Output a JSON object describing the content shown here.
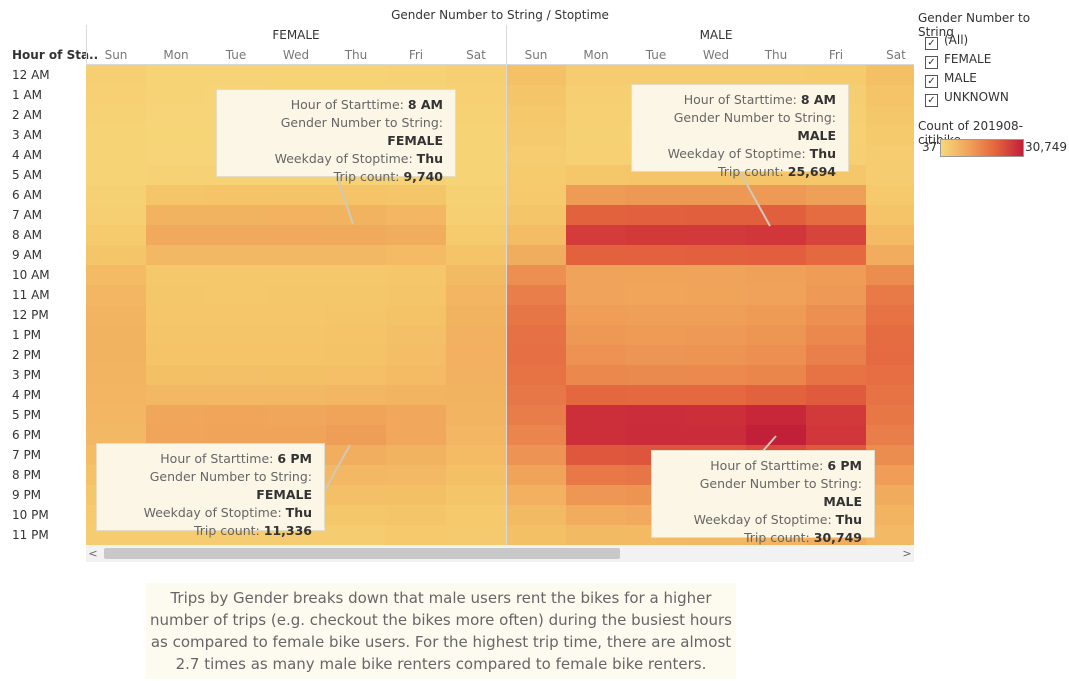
{
  "header": {
    "title": "Gender Number to String / Stoptime",
    "row_title": "Hour of Sta.."
  },
  "groups": [
    "FEMALE",
    "MALE"
  ],
  "days": [
    "Sun",
    "Mon",
    "Tue",
    "Wed",
    "Thu",
    "Fri",
    "Sat"
  ],
  "hours": [
    "12 AM",
    "1 AM",
    "2 AM",
    "3 AM",
    "4 AM",
    "5 AM",
    "6 AM",
    "7 AM",
    "8 AM",
    "9 AM",
    "10 AM",
    "11 AM",
    "12 PM",
    "1 PM",
    "2 PM",
    "3 PM",
    "4 PM",
    "5 PM",
    "6 PM",
    "7 PM",
    "8 PM",
    "9 PM",
    "10 PM",
    "11 PM"
  ],
  "colors": {
    "low": "#f6d87a",
    "mid1": "#f0a35a",
    "mid2": "#e4643e",
    "high": "#c21f39"
  },
  "chart_data": {
    "type": "heatmap",
    "title": "Gender Number to String / Stoptime",
    "x_groups": [
      "FEMALE",
      "MALE"
    ],
    "x": [
      "Sun",
      "Mon",
      "Tue",
      "Wed",
      "Thu",
      "Fri",
      "Sat"
    ],
    "y": [
      "12 AM",
      "1 AM",
      "2 AM",
      "3 AM",
      "4 AM",
      "5 AM",
      "6 AM",
      "7 AM",
      "8 AM",
      "9 AM",
      "10 AM",
      "11 AM",
      "12 PM",
      "1 PM",
      "2 PM",
      "3 PM",
      "4 PM",
      "5 PM",
      "6 PM",
      "7 PM",
      "8 PM",
      "9 PM",
      "10 PM",
      "11 PM"
    ],
    "color_range": [
      37,
      30749
    ],
    "values": {
      "FEMALE": [
        [
          2000,
          1200,
          1100,
          1200,
          1300,
          1400,
          2200
        ],
        [
          1800,
          1000,
          900,
          1000,
          1000,
          1100,
          1800
        ],
        [
          1500,
          900,
          800,
          900,
          900,
          900,
          1500
        ],
        [
          1300,
          800,
          700,
          800,
          800,
          900,
          1300
        ],
        [
          1200,
          900,
          800,
          900,
          900,
          900,
          1200
        ],
        [
          1300,
          1500,
          1500,
          1500,
          1500,
          1500,
          1300
        ],
        [
          1600,
          4500,
          4600,
          4700,
          4600,
          4300,
          1600
        ],
        [
          2000,
          7800,
          7900,
          8000,
          7900,
          7300,
          2100
        ],
        [
          3000,
          9400,
          9500,
          9600,
          9740,
          9000,
          3000
        ],
        [
          4500,
          6800,
          6800,
          6900,
          6800,
          6400,
          4600
        ],
        [
          6300,
          3800,
          3700,
          3800,
          3800,
          4200,
          6500
        ],
        [
          7200,
          3900,
          3800,
          3900,
          4000,
          4500,
          7400
        ],
        [
          7600,
          4200,
          4100,
          4200,
          4300,
          4900,
          7900
        ],
        [
          7800,
          4500,
          4400,
          4400,
          4600,
          5300,
          8200
        ],
        [
          7800,
          4800,
          4700,
          4700,
          4900,
          5700,
          8300
        ],
        [
          7600,
          5400,
          5300,
          5400,
          5500,
          6400,
          8100
        ],
        [
          7400,
          6900,
          6900,
          6900,
          7000,
          7700,
          7900
        ],
        [
          7200,
          10300,
          10400,
          10300,
          10600,
          9800,
          7600
        ],
        [
          6800,
          10500,
          10600,
          10600,
          11336,
          9900,
          7200
        ],
        [
          6000,
          7900,
          8100,
          8200,
          8700,
          7900,
          6300
        ],
        [
          5000,
          6200,
          6300,
          6400,
          6800,
          6600,
          5400
        ],
        [
          3900,
          4800,
          4900,
          5000,
          5300,
          5400,
          4400
        ],
        [
          3000,
          3600,
          3700,
          3800,
          4000,
          4300,
          3600
        ],
        [
          2500,
          2500,
          2600,
          2700,
          2900,
          3500,
          3200
        ]
      ],
      "MALE": [
        [
          5200,
          2800,
          2600,
          2800,
          2900,
          3000,
          5400
        ],
        [
          4500,
          2200,
          2000,
          2100,
          2200,
          2400,
          4700
        ],
        [
          3800,
          1800,
          1600,
          1700,
          1800,
          2000,
          3900
        ],
        [
          3200,
          1600,
          1500,
          1600,
          1600,
          1800,
          3300
        ],
        [
          2800,
          1900,
          1800,
          1900,
          1900,
          2000,
          2800
        ],
        [
          3000,
          4200,
          4300,
          4300,
          4300,
          4100,
          2900
        ],
        [
          3600,
          11800,
          12100,
          12100,
          12000,
          11200,
          3600
        ],
        [
          4500,
          18800,
          19100,
          19200,
          19300,
          17600,
          4700
        ],
        [
          6200,
          24800,
          25200,
          25300,
          25694,
          23600,
          6400
        ],
        [
          9000,
          18800,
          19000,
          19100,
          19400,
          17800,
          9200
        ],
        [
          13200,
          10800,
          10600,
          10800,
          11000,
          11700,
          13500
        ],
        [
          15300,
          10700,
          10500,
          10600,
          10900,
          12000,
          15800
        ],
        [
          16300,
          11500,
          11300,
          11300,
          11800,
          13100,
          16700
        ],
        [
          16900,
          12100,
          11800,
          12000,
          12400,
          14100,
          17600
        ],
        [
          17000,
          12800,
          12500,
          12600,
          13200,
          15200,
          17700
        ],
        [
          16600,
          14100,
          13800,
          14000,
          14500,
          16600,
          17300
        ],
        [
          16100,
          18100,
          17900,
          18000,
          18800,
          19900,
          16800
        ],
        [
          15400,
          27300,
          27600,
          27500,
          29100,
          25300,
          16200
        ],
        [
          14400,
          27500,
          27900,
          27800,
          30749,
          25700,
          15300
        ],
        [
          12700,
          20400,
          20900,
          21000,
          22700,
          20300,
          13500
        ],
        [
          10600,
          15900,
          16300,
          16400,
          17600,
          16700,
          11500
        ],
        [
          8300,
          12300,
          12600,
          12800,
          13700,
          13500,
          9300
        ],
        [
          6500,
          9100,
          9400,
          9600,
          10300,
          10700,
          7600
        ],
        [
          5400,
          6500,
          6700,
          6900,
          7500,
          8700,
          6600
        ]
      ]
    },
    "legend_title": "Count of 201908-citibike..",
    "legend_min": "37",
    "legend_max": "30,749",
    "grid": false
  },
  "tooltips": [
    {
      "hour_label": "Hour of Starttime:",
      "hour": "8 AM",
      "gender_label": "Gender Number to String:",
      "gender": "FEMALE",
      "weekday_label": "Weekday of Stoptime:",
      "weekday": "Thu",
      "count_label": "Trip count:",
      "count": "9,740"
    },
    {
      "hour_label": "Hour of Starttime:",
      "hour": "8 AM",
      "gender_label": "Gender Number to String:",
      "gender": "MALE",
      "weekday_label": "Weekday of Stoptime:",
      "weekday": "Thu",
      "count_label": "Trip count:",
      "count": "25,694"
    },
    {
      "hour_label": "Hour of Starttime:",
      "hour": "6 PM",
      "gender_label": "Gender Number to String:",
      "gender": "FEMALE",
      "weekday_label": "Weekday of Stoptime:",
      "weekday": "Thu",
      "count_label": "Trip count:",
      "count": "11,336"
    },
    {
      "hour_label": "Hour of Starttime:",
      "hour": "6 PM",
      "gender_label": "Gender Number to String:",
      "gender": "MALE",
      "weekday_label": "Weekday of Stoptime:",
      "weekday": "Thu",
      "count_label": "Trip count:",
      "count": "30,749"
    }
  ],
  "filter": {
    "title": "Gender Number to String",
    "items": [
      {
        "label": "(All)",
        "checked": true
      },
      {
        "label": "FEMALE",
        "checked": true
      },
      {
        "label": "MALE",
        "checked": true
      },
      {
        "label": "UNKNOWN",
        "checked": true
      }
    ]
  },
  "legend": {
    "title": "Count of 201908-citibike..",
    "min": "37",
    "max": "30,749"
  },
  "caption": {
    "line1": "Trips by Gender breaks down that male users rent the bikes for a higher",
    "line2": "number of trips (e.g. checkout the bikes more often) during the busiest hours",
    "line3": "as compared to female bike users.  For the highest trip time, there are almost",
    "line4": "2.7 times as many male bike renters compared to female bike renters."
  },
  "scrollbar": {
    "left_arrow": "<",
    "right_arrow": ">"
  }
}
